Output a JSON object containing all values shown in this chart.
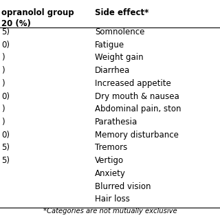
{
  "col1_header_line1": "opranolol group",
  "col1_header_line2": "20 (%)",
  "col2_header": "Side effect*",
  "rows": [
    [
      "5)",
      "Somnolence"
    ],
    [
      "0)",
      "Fatigue"
    ],
    [
      ")",
      "Weight gain"
    ],
    [
      ")",
      "Diarrhea"
    ],
    [
      ")",
      "Increased appetite"
    ],
    [
      "0)",
      "Dry mouth & nausea"
    ],
    [
      ")",
      "Abdominal pain, ston"
    ],
    [
      ")",
      "Parathesia"
    ],
    [
      "0)",
      "Memory disturbance"
    ],
    [
      "5)",
      "Tremors"
    ],
    [
      "5)",
      "Vertigo"
    ],
    [
      "",
      "Anxiety"
    ],
    [
      "",
      "Blurred vision"
    ],
    [
      "",
      "Hair loss"
    ]
  ],
  "footnote": "*Categories are not mutually exclusive",
  "bg_color": "#ffffff",
  "text_color": "#000000",
  "header_fontsize": 8.5,
  "body_fontsize": 8.5,
  "footnote_fontsize": 7.2
}
